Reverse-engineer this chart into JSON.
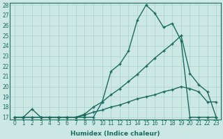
{
  "xlabel": "Humidex (Indice chaleur)",
  "x_values": [
    0,
    1,
    2,
    3,
    4,
    5,
    6,
    7,
    8,
    9,
    10,
    11,
    12,
    13,
    14,
    15,
    16,
    17,
    18,
    19,
    20,
    21,
    22,
    23
  ],
  "line1": [
    17,
    17,
    17.8,
    17,
    17,
    17,
    17,
    17,
    17,
    17,
    18.5,
    21.5,
    22.2,
    23.5,
    26.5,
    28,
    27.2,
    25.8,
    26.2,
    24.5,
    17,
    17,
    17,
    17
  ],
  "line2": [
    17,
    17,
    17,
    17,
    17,
    17,
    17,
    17,
    17.3,
    18,
    18.5,
    19.2,
    19.8,
    20.5,
    21.2,
    22,
    22.8,
    23.5,
    24.2,
    25,
    21.3,
    20.2,
    19.5,
    17
  ],
  "line3": [
    17,
    17,
    17,
    17,
    17,
    17,
    17,
    17,
    17.2,
    17.5,
    17.7,
    18,
    18.2,
    18.5,
    18.8,
    19,
    19.2,
    19.5,
    19.7,
    20,
    19.8,
    19.5,
    18.5,
    18.5
  ],
  "line_color": "#1a6b5e",
  "bg_color": "#cce8e5",
  "grid_color": "#aad0cc",
  "ylim_min": 17,
  "ylim_max": 28,
  "yticks": [
    17,
    18,
    19,
    20,
    21,
    22,
    23,
    24,
    25,
    26,
    27,
    28
  ],
  "marker": "+",
  "tick_fontsize": 5.5,
  "xlabel_fontsize": 6.5
}
